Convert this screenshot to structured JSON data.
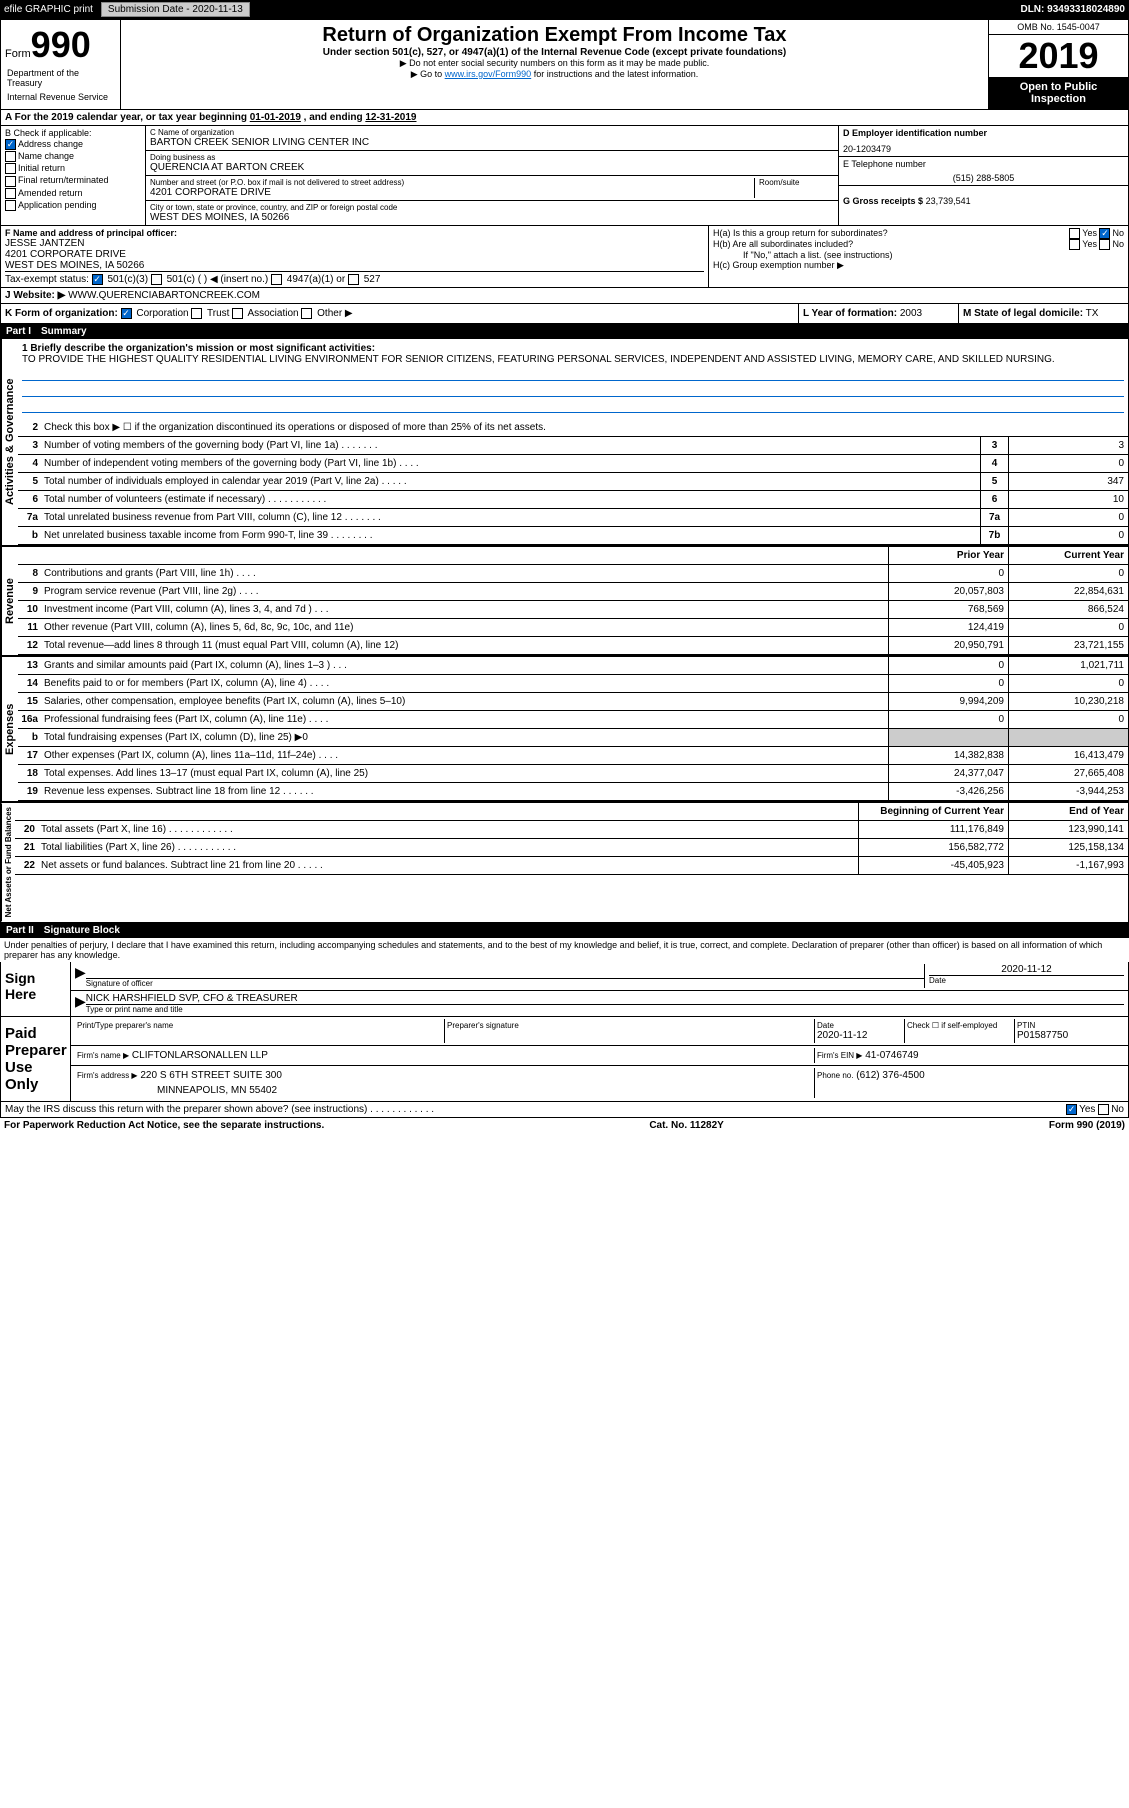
{
  "top": {
    "efile": "efile GRAPHIC print",
    "submission_label": "Submission Date - 2020-11-13",
    "dln": "DLN: 93493318024890"
  },
  "header": {
    "form_label": "Form",
    "form_num": "990",
    "title": "Return of Organization Exempt From Income Tax",
    "subtitle": "Under section 501(c), 527, or 4947(a)(1) of the Internal Revenue Code (except private foundations)",
    "note1": "▶ Do not enter social security numbers on this form as it may be made public.",
    "note2_prefix": "▶ Go to ",
    "note2_link": "www.irs.gov/Form990",
    "note2_suffix": " for instructions and the latest information.",
    "dept1": "Department of the Treasury",
    "dept2": "Internal Revenue Service",
    "omb": "OMB No. 1545-0047",
    "year": "2019",
    "open_public": "Open to Public Inspection"
  },
  "period": {
    "label_a": "A For the 2019 calendar year, or tax year beginning ",
    "begin": "01-01-2019",
    "mid": " , and ending ",
    "end": "12-31-2019"
  },
  "box_b": {
    "header": "B Check if applicable:",
    "items": [
      "Address change",
      "Name change",
      "Initial return",
      "Final return/terminated",
      "Amended return",
      "Application pending"
    ],
    "checked_index": 0
  },
  "box_c": {
    "name_label": "C Name of organization",
    "name": "BARTON CREEK SENIOR LIVING CENTER INC",
    "dba_label": "Doing business as",
    "dba": "QUERENCIA AT BARTON CREEK",
    "addr_label": "Number and street (or P.O. box if mail is not delivered to street address)",
    "room_label": "Room/suite",
    "addr": "4201 CORPORATE DRIVE",
    "city_label": "City or town, state or province, country, and ZIP or foreign postal code",
    "city": "WEST DES MOINES, IA  50266"
  },
  "box_d": {
    "label": "D Employer identification number",
    "value": "20-1203479"
  },
  "box_e": {
    "label": "E Telephone number",
    "value": "(515) 288-5805"
  },
  "box_g": {
    "label": "G Gross receipts $",
    "value": "23,739,541"
  },
  "box_f": {
    "label": "F  Name and address of principal officer:",
    "name": "JESSE JANTZEN",
    "addr1": "4201 CORPORATE DRIVE",
    "addr2": "WEST DES MOINES, IA  50266"
  },
  "box_h": {
    "a_label": "H(a)  Is this a group return for subordinates?",
    "b_label": "H(b)  Are all subordinates included?",
    "b_note": "If \"No,\" attach a list. (see instructions)",
    "c_label": "H(c)  Group exemption number ▶",
    "yes": "Yes",
    "no": "No"
  },
  "tax_status": {
    "label": "Tax-exempt status:",
    "opt1": "501(c)(3)",
    "opt2": "501(c) (  ) ◀ (insert no.)",
    "opt3": "4947(a)(1) or",
    "opt4": "527"
  },
  "box_j": {
    "label": "J",
    "website_label": "Website: ▶",
    "website": "WWW.QUERENCIABARTONCREEK.COM"
  },
  "box_k": {
    "label": "K Form of organization:",
    "opts": [
      "Corporation",
      "Trust",
      "Association",
      "Other ▶"
    ]
  },
  "box_l": {
    "label": "L Year of formation:",
    "value": "2003"
  },
  "box_m": {
    "label": "M State of legal domicile:",
    "value": "TX"
  },
  "part1": {
    "header": "Part I",
    "title": "Summary",
    "line1_label": "1  Briefly describe the organization's mission or most significant activities:",
    "mission": "TO PROVIDE THE HIGHEST QUALITY RESIDENTIAL LIVING ENVIRONMENT FOR SENIOR CITIZENS, FEATURING PERSONAL SERVICES, INDEPENDENT AND ASSISTED LIVING, MEMORY CARE, AND SKILLED NURSING.",
    "line2": "Check this box ▶ ☐  if the organization discontinued its operations or disposed of more than 25% of its net assets.",
    "sections": {
      "activities": "Activities & Governance",
      "revenue": "Revenue",
      "expenses": "Expenses",
      "netassets": "Net Assets or Fund Balances"
    },
    "lines_gov": [
      {
        "n": "3",
        "t": "Number of voting members of the governing body (Part VI, line 1a)  .    .    .    .    .    .    .",
        "box": "3",
        "v": "3"
      },
      {
        "n": "4",
        "t": "Number of independent voting members of the governing body (Part VI, line 1b)  .    .    .    .",
        "box": "4",
        "v": "0"
      },
      {
        "n": "5",
        "t": "Total number of individuals employed in calendar year 2019 (Part V, line 2a)  .    .    .    .    .",
        "box": "5",
        "v": "347"
      },
      {
        "n": "6",
        "t": "Total number of volunteers (estimate if necessary)    .    .    .    .    .    .    .    .    .    .    .",
        "box": "6",
        "v": "10"
      },
      {
        "n": "7a",
        "t": "Total unrelated business revenue from Part VIII, column (C), line 12  .    .    .    .    .    .    .",
        "box": "7a",
        "v": "0"
      },
      {
        "n": "b",
        "t": "Net unrelated business taxable income from Form 990-T, line 39   .    .    .    .    .    .    .    .",
        "box": "7b",
        "v": "0"
      }
    ],
    "col_prior": "Prior Year",
    "col_current": "Current Year",
    "lines_rev": [
      {
        "n": "8",
        "t": "Contributions and grants (Part VIII, line 1h)    .    .    .    .",
        "p": "0",
        "c": "0"
      },
      {
        "n": "9",
        "t": "Program service revenue (Part VIII, line 2g)    .    .    .    .",
        "p": "20,057,803",
        "c": "22,854,631"
      },
      {
        "n": "10",
        "t": "Investment income (Part VIII, column (A), lines 3, 4, and 7d )   .    .    .",
        "p": "768,569",
        "c": "866,524"
      },
      {
        "n": "11",
        "t": "Other revenue (Part VIII, column (A), lines 5, 6d, 8c, 9c, 10c, and 11e)",
        "p": "124,419",
        "c": "0"
      },
      {
        "n": "12",
        "t": "Total revenue—add lines 8 through 11 (must equal Part VIII, column (A), line 12)",
        "p": "20,950,791",
        "c": "23,721,155"
      }
    ],
    "lines_exp": [
      {
        "n": "13",
        "t": "Grants and similar amounts paid (Part IX, column (A), lines 1–3 )  .    .    .",
        "p": "0",
        "c": "1,021,711"
      },
      {
        "n": "14",
        "t": "Benefits paid to or for members (Part IX, column (A), line 4)  .    .    .    .",
        "p": "0",
        "c": "0"
      },
      {
        "n": "15",
        "t": "Salaries, other compensation, employee benefits (Part IX, column (A), lines 5–10)",
        "p": "9,994,209",
        "c": "10,230,218"
      },
      {
        "n": "16a",
        "t": "Professional fundraising fees (Part IX, column (A), line 11e)  .    .    .    .",
        "p": "0",
        "c": "0"
      },
      {
        "n": "b",
        "t": "Total fundraising expenses (Part IX, column (D), line 25) ▶0",
        "p": "shaded",
        "c": "shaded"
      },
      {
        "n": "17",
        "t": "Other expenses (Part IX, column (A), lines 11a–11d, 11f–24e)  .    .    .    .",
        "p": "14,382,838",
        "c": "16,413,479"
      },
      {
        "n": "18",
        "t": "Total expenses. Add lines 13–17 (must equal Part IX, column (A), line 25)",
        "p": "24,377,047",
        "c": "27,665,408"
      },
      {
        "n": "19",
        "t": "Revenue less expenses. Subtract line 18 from line 12  .    .    .    .    .    .",
        "p": "-3,426,256",
        "c": "-3,944,253"
      }
    ],
    "col_begin": "Beginning of Current Year",
    "col_end": "End of Year",
    "lines_net": [
      {
        "n": "20",
        "t": "Total assets (Part X, line 16)  .    .    .    .    .    .    .    .    .    .    .    .",
        "p": "111,176,849",
        "c": "123,990,141"
      },
      {
        "n": "21",
        "t": "Total liabilities (Part X, line 26)  .    .    .    .    .    .    .    .    .    .    .",
        "p": "156,582,772",
        "c": "125,158,134"
      },
      {
        "n": "22",
        "t": "Net assets or fund balances. Subtract line 21 from line 20  .    .    .    .    .",
        "p": "-45,405,923",
        "c": "-1,167,993"
      }
    ]
  },
  "part2": {
    "header": "Part II",
    "title": "Signature Block",
    "penalty": "Under penalties of perjury, I declare that I have examined this return, including accompanying schedules and statements, and to the best of my knowledge and belief, it is true, correct, and complete. Declaration of preparer (other than officer) is based on all information of which preparer has any knowledge.",
    "sign_here": "Sign Here",
    "sig_officer": "Signature of officer",
    "sig_date_label": "Date",
    "sig_date": "2020-11-12",
    "officer_name": "NICK HARSHFIELD  SVP, CFO & TREASURER",
    "officer_type": "Type or print name and title",
    "paid_prep": "Paid Preparer Use Only",
    "prep_name_label": "Print/Type preparer's name",
    "prep_sig_label": "Preparer's signature",
    "prep_date_label": "Date",
    "prep_date": "2020-11-12",
    "prep_check_label": "Check ☐ if self-employed",
    "ptin_label": "PTIN",
    "ptin": "P01587750",
    "firm_name_label": "Firm's name     ▶",
    "firm_name": "CLIFTONLARSONALLEN LLP",
    "firm_ein_label": "Firm's EIN ▶",
    "firm_ein": "41-0746749",
    "firm_addr_label": "Firm's address ▶",
    "firm_addr1": "220 S 6TH STREET SUITE 300",
    "firm_addr2": "MINNEAPOLIS, MN  55402",
    "firm_phone_label": "Phone no.",
    "firm_phone": "(612) 376-4500",
    "discuss": "May the IRS discuss this return with the preparer shown above? (see instructions)    .    .    .    .    .    .    .    .    .    .    .    .",
    "yes": "Yes",
    "no": "No"
  },
  "footer": {
    "left": "For Paperwork Reduction Act Notice, see the separate instructions.",
    "mid": "Cat. No. 11282Y",
    "right": "Form 990 (2019)"
  },
  "colors": {
    "link": "#0066cc",
    "check": "#0066cc"
  }
}
